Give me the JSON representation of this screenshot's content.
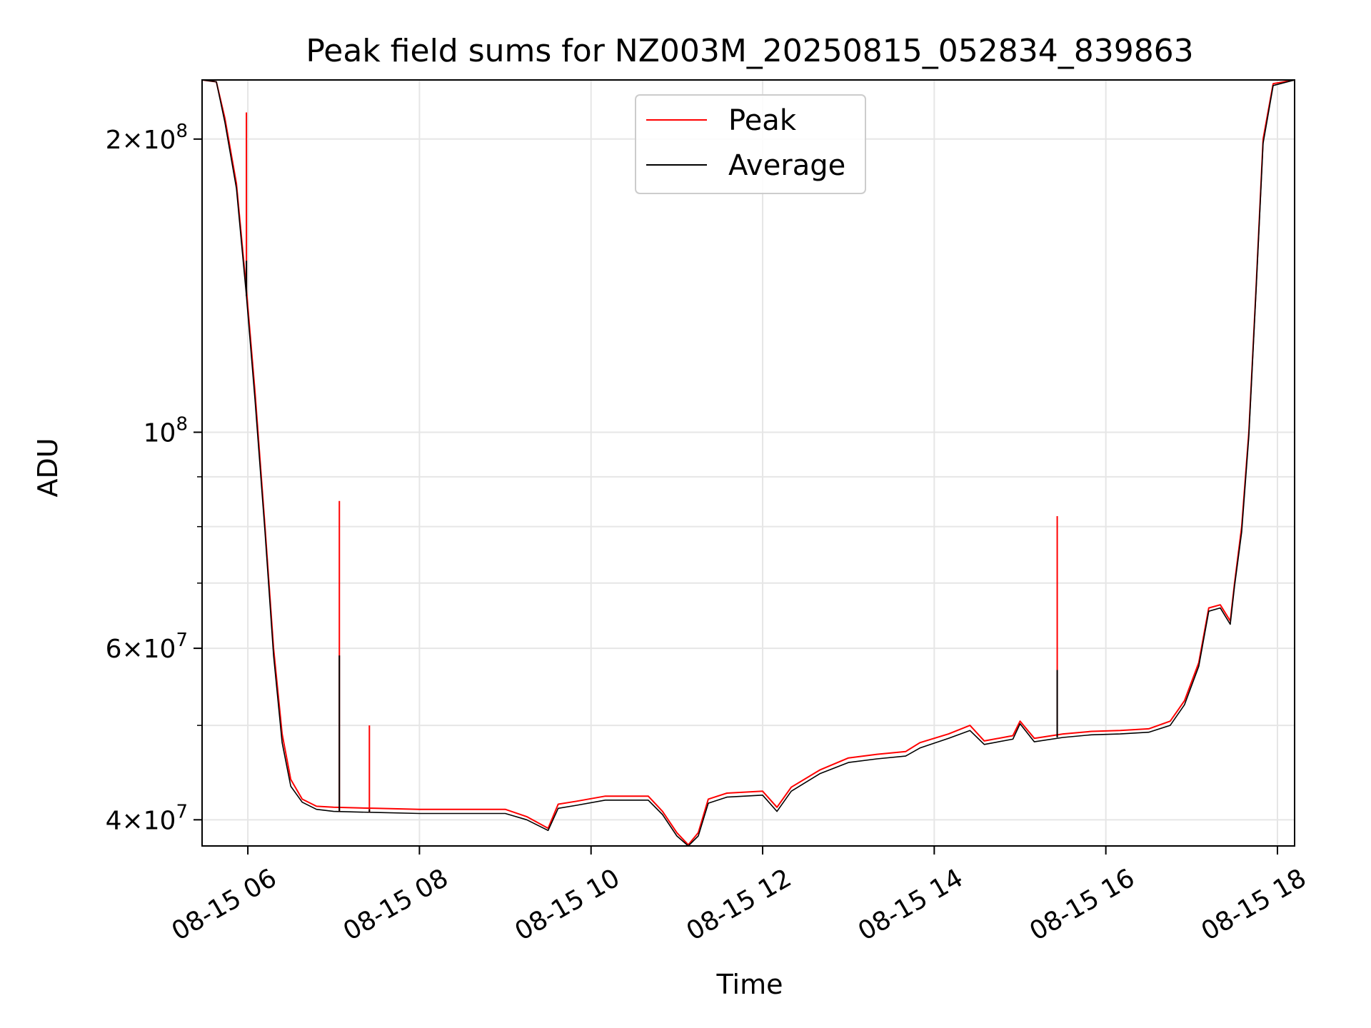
{
  "chart_data": {
    "type": "line",
    "title": "Peak field sums for NZ003M_20250815_052834_839863",
    "xlabel": "Time",
    "ylabel": "ADU",
    "y_scale": "log",
    "ylim": [
      37600000,
      230000000
    ],
    "xlim": [
      "08-15 05:28",
      "08-15 18:12"
    ],
    "grid": true,
    "legend_position": "upper center",
    "x_ticks": [
      {
        "time": "08-15 06:00",
        "label": "08-15 06"
      },
      {
        "time": "08-15 08:00",
        "label": "08-15 08"
      },
      {
        "time": "08-15 10:00",
        "label": "08-15 10"
      },
      {
        "time": "08-15 12:00",
        "label": "08-15 12"
      },
      {
        "time": "08-15 14:00",
        "label": "08-15 14"
      },
      {
        "time": "08-15 16:00",
        "label": "08-15 16"
      },
      {
        "time": "08-15 18:00",
        "label": "08-15 18"
      }
    ],
    "y_ticks": [
      {
        "value": 40000000,
        "mantissa": "4",
        "exponent": "7"
      },
      {
        "value": 60000000,
        "mantissa": "6",
        "exponent": "7"
      },
      {
        "value": 100000000,
        "mantissa": "",
        "exponent": "8"
      },
      {
        "value": 200000000,
        "mantissa": "2",
        "exponent": "8"
      }
    ],
    "y_minor_ticks": [
      50000000,
      70000000,
      80000000,
      90000000
    ],
    "series": [
      {
        "name": "Peak",
        "color": "#ff0000",
        "points": [
          [
            "08-15 05:28",
            230000000
          ],
          [
            "08-15 05:38",
            229000000
          ],
          [
            "08-15 05:44",
            210000000
          ],
          [
            "08-15 05:52",
            180000000
          ],
          [
            "08-15 05:59",
            140000000
          ],
          [
            "08-15 06:05",
            110000000
          ],
          [
            "08-15 06:12",
            80000000
          ],
          [
            "08-15 06:18",
            60000000
          ],
          [
            "08-15 06:24",
            49000000
          ],
          [
            "08-15 06:30",
            44000000
          ],
          [
            "08-15 06:38",
            42000000
          ],
          [
            "08-15 06:48",
            41300000
          ],
          [
            "08-15 07:00",
            41200000
          ],
          [
            "08-15 07:30",
            41100000
          ],
          [
            "08-15 08:00",
            41000000
          ],
          [
            "08-15 08:30",
            41000000
          ],
          [
            "08-15 09:00",
            41000000
          ],
          [
            "08-15 09:15",
            40300000
          ],
          [
            "08-15 09:30",
            39200000
          ],
          [
            "08-15 09:37",
            41500000
          ],
          [
            "08-15 09:50",
            41800000
          ],
          [
            "08-15 10:10",
            42300000
          ],
          [
            "08-15 10:40",
            42300000
          ],
          [
            "08-15 10:50",
            40800000
          ],
          [
            "08-15 11:00",
            38800000
          ],
          [
            "08-15 11:08",
            37700000
          ],
          [
            "08-15 11:15",
            38800000
          ],
          [
            "08-15 11:22",
            42000000
          ],
          [
            "08-15 11:35",
            42600000
          ],
          [
            "08-15 12:00",
            42800000
          ],
          [
            "08-15 12:10",
            41200000
          ],
          [
            "08-15 12:20",
            43200000
          ],
          [
            "08-15 12:40",
            45000000
          ],
          [
            "08-15 13:00",
            46300000
          ],
          [
            "08-15 13:20",
            46700000
          ],
          [
            "08-15 13:40",
            47000000
          ],
          [
            "08-15 13:50",
            48000000
          ],
          [
            "08-15 14:10",
            49000000
          ],
          [
            "08-15 14:25",
            50000000
          ],
          [
            "08-15 14:35",
            48200000
          ],
          [
            "08-15 14:55",
            48800000
          ],
          [
            "08-15 15:00",
            50500000
          ],
          [
            "08-15 15:10",
            48500000
          ],
          [
            "08-15 15:30",
            49000000
          ],
          [
            "08-15 15:50",
            49300000
          ],
          [
            "08-15 16:10",
            49400000
          ],
          [
            "08-15 16:30",
            49600000
          ],
          [
            "08-15 16:45",
            50500000
          ],
          [
            "08-15 16:55",
            53000000
          ],
          [
            "08-15 17:05",
            58000000
          ],
          [
            "08-15 17:12",
            66000000
          ],
          [
            "08-15 17:20",
            66500000
          ],
          [
            "08-15 17:27",
            64000000
          ],
          [
            "08-15 17:30",
            70000000
          ],
          [
            "08-15 17:35",
            80000000
          ],
          [
            "08-15 17:40",
            100000000
          ],
          [
            "08-15 17:45",
            140000000
          ],
          [
            "08-15 17:50",
            200000000
          ],
          [
            "08-15 17:57",
            228000000
          ],
          [
            "08-15 18:12",
            230000000
          ]
        ]
      },
      {
        "name": "Average",
        "color": "#000000",
        "points": [
          [
            "08-15 05:28",
            230000000
          ],
          [
            "08-15 05:38",
            229000000
          ],
          [
            "08-15 05:44",
            208000000
          ],
          [
            "08-15 05:52",
            178000000
          ],
          [
            "08-15 05:59",
            138000000
          ],
          [
            "08-15 06:05",
            108000000
          ],
          [
            "08-15 06:12",
            79000000
          ],
          [
            "08-15 06:18",
            59000000
          ],
          [
            "08-15 06:24",
            48000000
          ],
          [
            "08-15 06:30",
            43300000
          ],
          [
            "08-15 06:38",
            41700000
          ],
          [
            "08-15 06:48",
            41000000
          ],
          [
            "08-15 07:00",
            40800000
          ],
          [
            "08-15 07:30",
            40700000
          ],
          [
            "08-15 08:00",
            40600000
          ],
          [
            "08-15 08:30",
            40600000
          ],
          [
            "08-15 09:00",
            40600000
          ],
          [
            "08-15 09:15",
            40000000
          ],
          [
            "08-15 09:30",
            39000000
          ],
          [
            "08-15 09:37",
            41100000
          ],
          [
            "08-15 09:50",
            41400000
          ],
          [
            "08-15 10:10",
            41900000
          ],
          [
            "08-15 10:40",
            41900000
          ],
          [
            "08-15 10:50",
            40500000
          ],
          [
            "08-15 11:00",
            38500000
          ],
          [
            "08-15 11:08",
            37600000
          ],
          [
            "08-15 11:15",
            38500000
          ],
          [
            "08-15 11:22",
            41600000
          ],
          [
            "08-15 11:35",
            42200000
          ],
          [
            "08-15 12:00",
            42400000
          ],
          [
            "08-15 12:10",
            40800000
          ],
          [
            "08-15 12:20",
            42800000
          ],
          [
            "08-15 12:40",
            44600000
          ],
          [
            "08-15 13:00",
            45800000
          ],
          [
            "08-15 13:20",
            46200000
          ],
          [
            "08-15 13:40",
            46500000
          ],
          [
            "08-15 13:50",
            47400000
          ],
          [
            "08-15 14:10",
            48500000
          ],
          [
            "08-15 14:25",
            49400000
          ],
          [
            "08-15 14:35",
            47800000
          ],
          [
            "08-15 14:55",
            48400000
          ],
          [
            "08-15 15:00",
            50200000
          ],
          [
            "08-15 15:10",
            48100000
          ],
          [
            "08-15 15:30",
            48600000
          ],
          [
            "08-15 15:50",
            48900000
          ],
          [
            "08-15 16:10",
            49000000
          ],
          [
            "08-15 16:30",
            49200000
          ],
          [
            "08-15 16:45",
            50000000
          ],
          [
            "08-15 16:55",
            52500000
          ],
          [
            "08-15 17:05",
            57500000
          ],
          [
            "08-15 17:12",
            65500000
          ],
          [
            "08-15 17:20",
            66000000
          ],
          [
            "08-15 17:27",
            63500000
          ],
          [
            "08-15 17:30",
            69500000
          ],
          [
            "08-15 17:35",
            79000000
          ],
          [
            "08-15 17:40",
            99000000
          ],
          [
            "08-15 17:45",
            139000000
          ],
          [
            "08-15 17:50",
            198000000
          ],
          [
            "08-15 17:57",
            227000000
          ],
          [
            "08-15 18:12",
            230000000
          ]
        ]
      }
    ],
    "spikes": [
      {
        "time": "08-15 05:59",
        "peak": 213000000,
        "average": 150000000
      },
      {
        "time": "08-15 07:04",
        "peak": 85000000,
        "average": 59000000
      },
      {
        "time": "08-15 07:25",
        "peak": 50000000,
        "average": 41000000
      },
      {
        "time": "08-15 15:26",
        "peak": 82000000,
        "average": 57000000
      }
    ]
  }
}
